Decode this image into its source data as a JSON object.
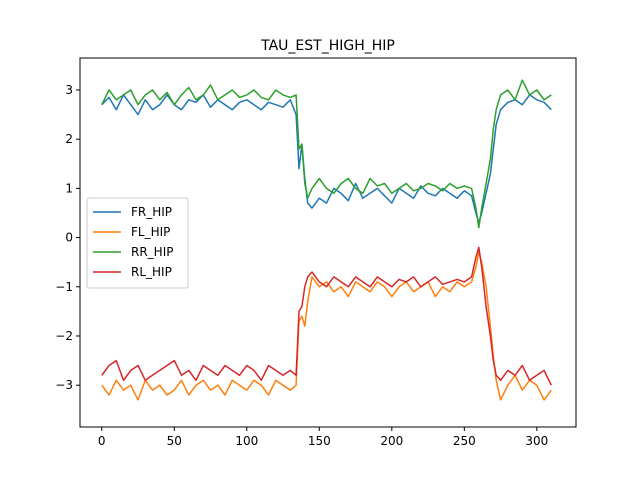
{
  "chart_data": {
    "type": "line",
    "title": "TAU_EST_HIGH_HIP",
    "xlabel": "",
    "ylabel": "",
    "xlim": [
      -15,
      327
    ],
    "ylim": [
      -3.85,
      3.65
    ],
    "xticks": [
      0,
      50,
      100,
      150,
      200,
      250,
      300
    ],
    "yticks": [
      -3,
      -2,
      -1,
      0,
      1,
      2,
      3
    ],
    "ytick_labels": [
      "−3",
      "−2",
      "−1",
      "0",
      "1",
      "2",
      "3"
    ],
    "grid": false,
    "legend_position": "center-left",
    "series": [
      {
        "name": "FR_HIP",
        "color": "#1f77b4",
        "x": [
          0,
          5,
          10,
          15,
          20,
          25,
          30,
          35,
          40,
          45,
          50,
          55,
          60,
          65,
          70,
          75,
          80,
          85,
          90,
          95,
          100,
          105,
          110,
          115,
          120,
          125,
          130,
          134,
          136,
          138,
          140,
          142,
          145,
          150,
          155,
          160,
          165,
          170,
          175,
          180,
          185,
          190,
          195,
          200,
          205,
          210,
          215,
          220,
          225,
          230,
          235,
          240,
          245,
          250,
          255,
          258,
          260,
          262,
          265,
          268,
          270,
          272,
          275,
          280,
          285,
          290,
          295,
          300,
          305,
          310
        ],
        "y": [
          2.7,
          2.85,
          2.6,
          2.9,
          2.7,
          2.5,
          2.8,
          2.6,
          2.7,
          2.9,
          2.7,
          2.6,
          2.8,
          2.75,
          2.9,
          2.65,
          2.8,
          2.7,
          2.6,
          2.75,
          2.8,
          2.7,
          2.6,
          2.75,
          2.7,
          2.65,
          2.8,
          2.5,
          1.4,
          1.9,
          1.2,
          0.7,
          0.6,
          0.8,
          0.7,
          1.0,
          0.9,
          0.75,
          1.1,
          0.8,
          0.9,
          1.0,
          0.85,
          0.7,
          1.0,
          0.9,
          0.8,
          1.05,
          0.9,
          0.85,
          1.0,
          0.9,
          0.8,
          0.95,
          0.85,
          0.5,
          0.3,
          0.5,
          0.9,
          1.3,
          1.8,
          2.3,
          2.6,
          2.75,
          2.8,
          2.7,
          2.9,
          2.8,
          2.75,
          2.6
        ]
      },
      {
        "name": "FL_HIP",
        "color": "#ff7f0e",
        "x": [
          0,
          5,
          10,
          15,
          20,
          25,
          30,
          35,
          40,
          45,
          50,
          55,
          60,
          65,
          70,
          75,
          80,
          85,
          90,
          95,
          100,
          105,
          110,
          115,
          120,
          125,
          130,
          134,
          136,
          138,
          140,
          142,
          145,
          150,
          155,
          160,
          165,
          170,
          175,
          180,
          185,
          190,
          195,
          200,
          205,
          210,
          215,
          220,
          225,
          230,
          235,
          240,
          245,
          250,
          255,
          258,
          260,
          262,
          265,
          268,
          270,
          272,
          275,
          280,
          285,
          290,
          295,
          300,
          305,
          310
        ],
        "y": [
          -3.0,
          -3.2,
          -2.9,
          -3.1,
          -3.0,
          -3.3,
          -2.9,
          -3.1,
          -3.0,
          -3.2,
          -3.1,
          -2.9,
          -3.2,
          -3.0,
          -2.9,
          -3.1,
          -3.0,
          -3.2,
          -2.9,
          -3.0,
          -3.1,
          -2.9,
          -3.0,
          -3.2,
          -2.9,
          -3.0,
          -3.1,
          -3.0,
          -1.7,
          -1.6,
          -1.8,
          -1.3,
          -0.8,
          -1.0,
          -0.9,
          -1.1,
          -1.0,
          -1.2,
          -0.9,
          -1.0,
          -1.1,
          -0.9,
          -1.0,
          -1.2,
          -1.0,
          -0.9,
          -1.1,
          -1.0,
          -0.9,
          -1.2,
          -1.0,
          -1.1,
          -0.9,
          -1.0,
          -0.9,
          -0.6,
          -0.3,
          -0.5,
          -1.0,
          -1.8,
          -2.4,
          -2.9,
          -3.3,
          -3.0,
          -2.8,
          -3.1,
          -2.9,
          -3.0,
          -3.3,
          -3.1
        ]
      },
      {
        "name": "RR_HIP",
        "color": "#2ca02c",
        "x": [
          0,
          5,
          10,
          15,
          20,
          25,
          30,
          35,
          40,
          45,
          50,
          55,
          60,
          65,
          70,
          75,
          80,
          85,
          90,
          95,
          100,
          105,
          110,
          115,
          120,
          125,
          130,
          134,
          136,
          138,
          140,
          142,
          145,
          150,
          155,
          160,
          165,
          170,
          175,
          180,
          185,
          190,
          195,
          200,
          205,
          210,
          215,
          220,
          225,
          230,
          235,
          240,
          245,
          250,
          255,
          258,
          260,
          262,
          265,
          268,
          270,
          272,
          275,
          280,
          285,
          290,
          295,
          300,
          305,
          310
        ],
        "y": [
          2.7,
          3.0,
          2.8,
          2.9,
          3.0,
          2.7,
          2.9,
          3.0,
          2.8,
          2.95,
          2.7,
          2.9,
          3.05,
          2.8,
          2.9,
          3.1,
          2.8,
          2.9,
          3.0,
          2.85,
          2.9,
          3.0,
          2.85,
          2.8,
          3.0,
          2.9,
          2.85,
          2.9,
          1.8,
          1.9,
          1.1,
          0.8,
          1.0,
          1.2,
          1.0,
          0.9,
          1.1,
          1.2,
          1.0,
          0.9,
          1.2,
          1.05,
          1.1,
          0.9,
          1.0,
          1.1,
          0.95,
          1.0,
          1.1,
          1.05,
          0.95,
          1.1,
          1.0,
          1.05,
          1.0,
          0.6,
          0.2,
          0.6,
          1.1,
          1.6,
          2.2,
          2.6,
          2.9,
          3.0,
          2.8,
          3.2,
          2.9,
          3.0,
          2.8,
          2.9
        ]
      },
      {
        "name": "RL_HIP",
        "color": "#d62728",
        "x": [
          0,
          5,
          10,
          15,
          20,
          25,
          30,
          35,
          40,
          45,
          50,
          55,
          60,
          65,
          70,
          75,
          80,
          85,
          90,
          95,
          100,
          105,
          110,
          115,
          120,
          125,
          130,
          134,
          136,
          138,
          140,
          142,
          145,
          150,
          155,
          160,
          165,
          170,
          175,
          180,
          185,
          190,
          195,
          200,
          205,
          210,
          215,
          220,
          225,
          230,
          235,
          240,
          245,
          250,
          255,
          258,
          260,
          262,
          265,
          268,
          270,
          272,
          275,
          280,
          285,
          290,
          295,
          300,
          305,
          310
        ],
        "y": [
          -2.8,
          -2.6,
          -2.5,
          -2.9,
          -2.7,
          -2.6,
          -2.9,
          -2.8,
          -2.7,
          -2.6,
          -2.5,
          -2.8,
          -2.7,
          -2.9,
          -2.6,
          -2.7,
          -2.8,
          -2.6,
          -2.7,
          -2.8,
          -2.6,
          -2.7,
          -2.9,
          -2.6,
          -2.7,
          -2.8,
          -2.7,
          -2.8,
          -1.5,
          -1.4,
          -1.0,
          -0.8,
          -0.7,
          -0.9,
          -1.0,
          -0.8,
          -0.9,
          -1.0,
          -0.8,
          -0.9,
          -1.0,
          -0.8,
          -0.9,
          -1.0,
          -0.85,
          -0.9,
          -0.8,
          -1.0,
          -0.9,
          -0.8,
          -0.95,
          -0.9,
          -0.85,
          -0.9,
          -0.8,
          -0.4,
          -0.2,
          -0.6,
          -1.4,
          -2.0,
          -2.5,
          -2.8,
          -2.9,
          -2.7,
          -2.8,
          -2.6,
          -2.9,
          -2.8,
          -2.7,
          -3.0
        ]
      }
    ]
  }
}
